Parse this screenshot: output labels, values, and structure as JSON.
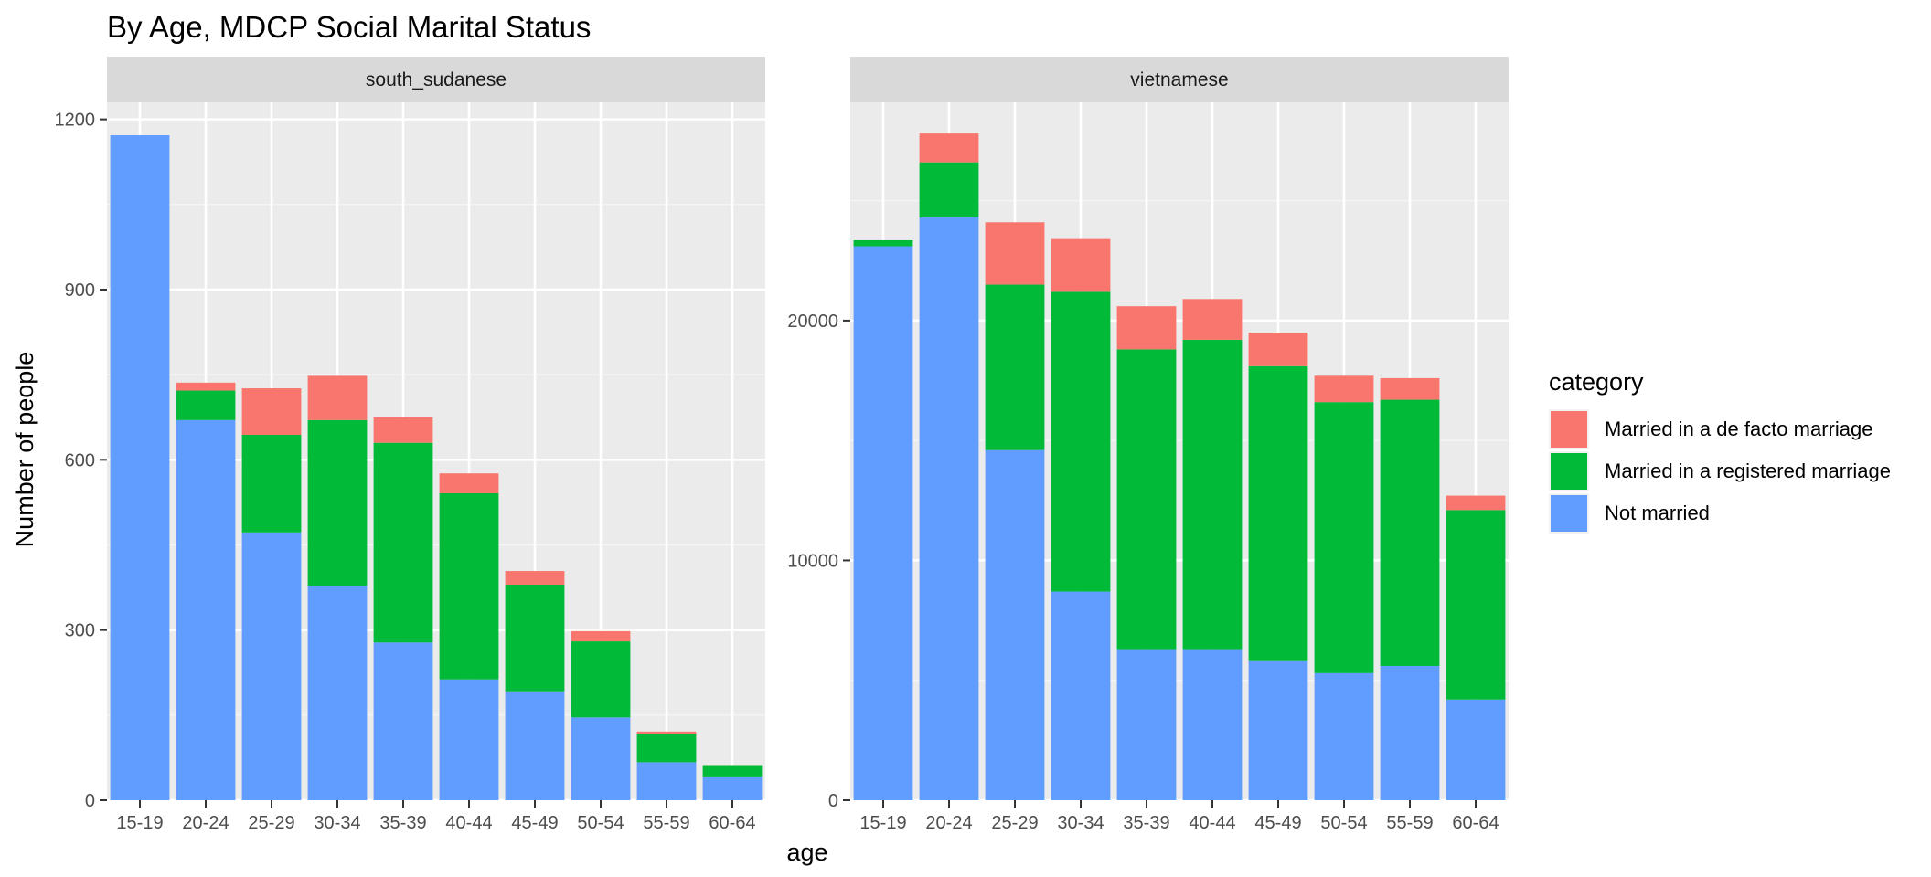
{
  "chart_data": {
    "type": "bar",
    "stacked": true,
    "title": "By Age,  MDCP Social Marital Status",
    "xlabel": "age",
    "ylabel": "Number of people",
    "categories": [
      "15-19",
      "20-24",
      "25-29",
      "30-34",
      "35-39",
      "40-44",
      "45-49",
      "50-54",
      "55-59",
      "60-64"
    ],
    "legend": {
      "title": "category",
      "position": "right",
      "entries": [
        {
          "label": "Married in a de facto marriage",
          "color": "#F8766D"
        },
        {
          "label": "Married in a registered marriage",
          "color": "#00BA38"
        },
        {
          "label": "Not married",
          "color": "#619CFF"
        }
      ]
    },
    "grid": true,
    "panels": [
      {
        "strip": "south_sudanese",
        "ylim": [
          0,
          1230
        ],
        "yticks": [
          0,
          300,
          600,
          900,
          1200
        ],
        "ytick_labels": [
          "0",
          "300",
          "600",
          "900",
          "1200"
        ],
        "series": [
          {
            "name": "Not married",
            "values": [
              1172,
              670,
              472,
              378,
              278,
              213,
              192,
              146,
              67,
              42
            ]
          },
          {
            "name": "Married in a registered marriage",
            "values": [
              0,
              52,
              172,
              292,
              352,
              328,
              188,
              134,
              50,
              20
            ]
          },
          {
            "name": "Married in a de facto marriage",
            "values": [
              0,
              14,
              82,
              78,
              45,
              35,
              24,
              18,
              4,
              0
            ]
          }
        ]
      },
      {
        "strip": "vietnamese",
        "ylim": [
          0,
          29100
        ],
        "yticks": [
          0,
          10000,
          20000
        ],
        "ytick_labels": [
          "0",
          "10000",
          "20000"
        ],
        "series": [
          {
            "name": "Not married",
            "values": [
              23100,
              24300,
              14600,
              8700,
              6300,
              6300,
              5800,
              5300,
              5600,
              4200
            ]
          },
          {
            "name": "Married in a registered marriage",
            "values": [
              250,
              2300,
              6900,
              12500,
              12500,
              12900,
              12300,
              11300,
              11100,
              7900
            ]
          },
          {
            "name": "Married in a de facto marriage",
            "values": [
              0,
              1200,
              2600,
              2200,
              1800,
              1700,
              1400,
              1100,
              900,
              600
            ]
          }
        ]
      }
    ]
  }
}
